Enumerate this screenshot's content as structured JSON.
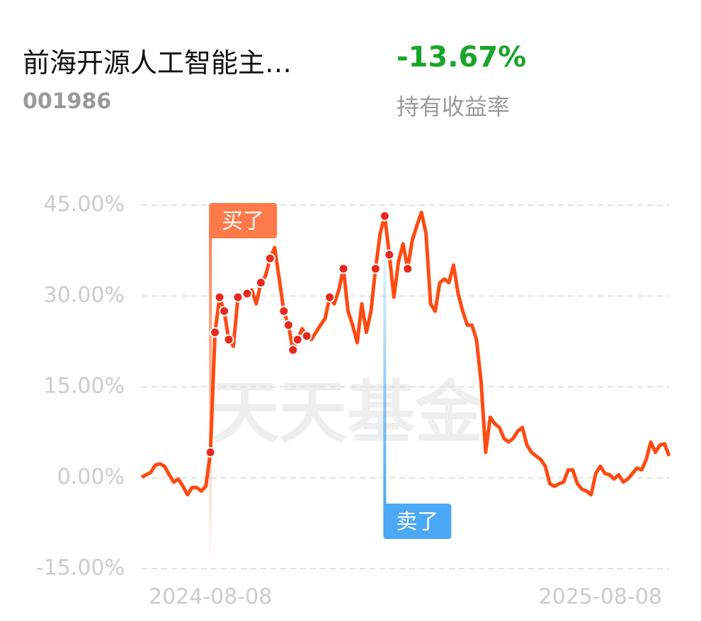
{
  "header": {
    "title": "前海开源人工智能主…",
    "code": "001986",
    "return": "-13.67%",
    "return_label": "持有收益率"
  },
  "watermark": "天天基金",
  "chart_data": {
    "type": "line",
    "categories": [
      null,
      null,
      null,
      null,
      null,
      null,
      null,
      null,
      null,
      null,
      null,
      null,
      null,
      null,
      null,
      "2024-08-08",
      null,
      null,
      null,
      null,
      null,
      null,
      null,
      null,
      null,
      null,
      null,
      null,
      null,
      null,
      null,
      null,
      null,
      null,
      null,
      null,
      null,
      null,
      null,
      null,
      null,
      null,
      null,
      null,
      null,
      null,
      null,
      null,
      null,
      null,
      null,
      null,
      null,
      null,
      null,
      null,
      null,
      null,
      null,
      null,
      null,
      null,
      null,
      null,
      null,
      null,
      null,
      null,
      null,
      null,
      null,
      null,
      null,
      null,
      null,
      null,
      null,
      null,
      null,
      null,
      null,
      null,
      null,
      null,
      null,
      null,
      null,
      null,
      null,
      null,
      null,
      null,
      null,
      null,
      null,
      null,
      null,
      null,
      null,
      null,
      "2025-08-08",
      null,
      null,
      null,
      null,
      null,
      null,
      null,
      null,
      null,
      null,
      null,
      null,
      null,
      null,
      null
    ],
    "series": [
      {
        "name": "持有收益率",
        "color": "#ff4a12",
        "values": [
          0.1,
          0.5,
          0.9,
          2.1,
          2.3,
          1.9,
          0.5,
          -0.7,
          -0.2,
          -1.4,
          -2.8,
          -1.6,
          -1.6,
          -2.2,
          -1.4,
          4.2,
          24,
          29.8,
          27.5,
          22.8,
          21.7,
          29.8,
          29.8,
          30.4,
          31,
          28.7,
          32.2,
          33.3,
          36.2,
          38,
          32.8,
          27.5,
          25.2,
          21.1,
          22.8,
          24.6,
          23.4,
          22.8,
          24,
          25.2,
          26.3,
          29.8,
          28.7,
          31,
          34.5,
          27.5,
          25.2,
          22.3,
          28.7,
          24,
          27.5,
          34.5,
          40.3,
          43.2,
          36.8,
          29.8,
          35.7,
          38.6,
          34.5,
          39.2,
          41.6,
          43.8,
          40.3,
          28.7,
          27.5,
          32.2,
          32.8,
          32.2,
          35.1,
          30.4,
          27.5,
          25.2,
          25.2,
          22.8,
          15.9,
          4.2,
          10,
          8.9,
          8.3,
          6.5,
          5.9,
          6.5,
          7.7,
          8.3,
          5.4,
          4.2,
          3.6,
          3,
          1.9,
          -1,
          -1.4,
          -1,
          -0.7,
          1.3,
          1.3,
          -1,
          -1.9,
          -2.2,
          -2.8,
          0.7,
          1.9,
          0.7,
          0.5,
          -0.2,
          0.5,
          -0.7,
          -0.2,
          0.7,
          1.6,
          1.3,
          3,
          5.9,
          4.2,
          5.4,
          5.6,
          3.6
        ]
      }
    ],
    "trade_markers": [
      15,
      16,
      17,
      18,
      19,
      21,
      23,
      26,
      28,
      31,
      32,
      33,
      34,
      36,
      41,
      44,
      51,
      53,
      54,
      58
    ],
    "annotations": [
      {
        "text": "买了",
        "index": 15,
        "color": "#ff7a4a"
      },
      {
        "text": "卖了",
        "index": 53,
        "color": "#4aa8f5"
      }
    ],
    "ylim": [
      -15,
      45
    ],
    "yticks": [
      {
        "value": -15,
        "label": "-15.00%"
      },
      {
        "value": 0,
        "label": "0.00%"
      },
      {
        "value": 15,
        "label": "15.00%"
      },
      {
        "value": 30,
        "label": "30.00%"
      },
      {
        "value": 45,
        "label": "45.00%"
      }
    ],
    "grid": true
  }
}
